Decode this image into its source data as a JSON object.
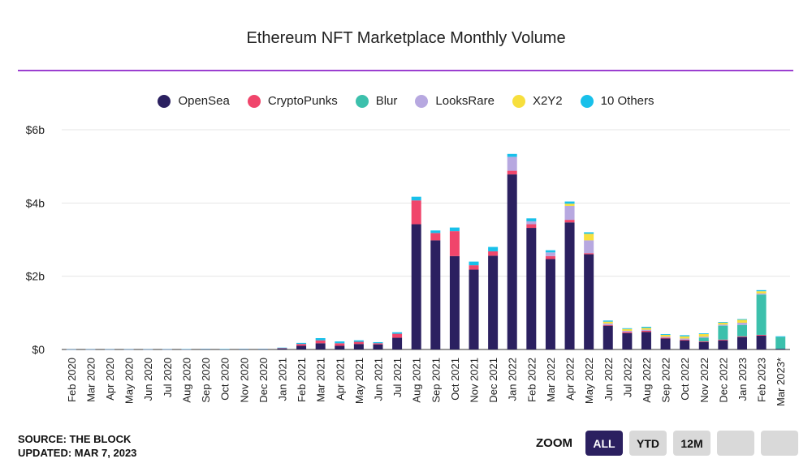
{
  "title": "Ethereum NFT Marketplace Monthly Volume",
  "colors": {
    "title_rule": "#9b3fd0"
  },
  "legend": [
    {
      "label": "OpenSea",
      "color": "#2b2060"
    },
    {
      "label": "CryptoPunks",
      "color": "#f0456b"
    },
    {
      "label": "Blur",
      "color": "#3cc0ac"
    },
    {
      "label": "LooksRare",
      "color": "#b7a8e0"
    },
    {
      "label": "X2Y2",
      "color": "#f7df3d"
    },
    {
      "label": "10 Others",
      "color": "#18c0ea"
    }
  ],
  "source": {
    "line1": "SOURCE: THE BLOCK",
    "line2": "UPDATED: MAR 7, 2023"
  },
  "zoom": {
    "label": "ZOOM",
    "buttons": [
      {
        "label": "ALL",
        "active": true
      },
      {
        "label": "YTD",
        "active": false
      },
      {
        "label": "12M",
        "active": false
      },
      {
        "label": "",
        "active": false
      },
      {
        "label": "",
        "active": false
      }
    ]
  },
  "chart_data": {
    "type": "bar",
    "stacked": true,
    "title": "Ethereum NFT Marketplace Monthly Volume",
    "xlabel": "",
    "ylabel": "",
    "ylim": [
      0,
      6
    ],
    "yticks": [
      0,
      2,
      4,
      6
    ],
    "ytick_labels": [
      "$0",
      "$2b",
      "$4b",
      "$6b"
    ],
    "grid": true,
    "legend_position": "top",
    "categories": [
      "Feb 2020",
      "Mar 2020",
      "Apr 2020",
      "May 2020",
      "Jun 2020",
      "Jul 2020",
      "Aug 2020",
      "Sep 2020",
      "Oct 2020",
      "Nov 2020",
      "Dec 2020",
      "Jan 2021",
      "Feb 2021",
      "Mar 2021",
      "Apr 2021",
      "May 2021",
      "Jun 2021",
      "Jul 2021",
      "Aug 2021",
      "Sep 2021",
      "Oct 2021",
      "Nov 2021",
      "Dec 2021",
      "Jan 2022",
      "Feb 2022",
      "Mar 2022",
      "Apr 2022",
      "May 2022",
      "Jun 2022",
      "Jul 2022",
      "Aug 2022",
      "Sep 2022",
      "Oct 2022",
      "Nov 2022",
      "Dec 2022",
      "Jan 2023",
      "Feb 2023",
      "Mar 2023*"
    ],
    "series": [
      {
        "name": "OpenSea",
        "color": "#2b2060",
        "values": [
          0.002,
          0.003,
          0.003,
          0.003,
          0.003,
          0.004,
          0.006,
          0.01,
          0.008,
          0.01,
          0.01,
          0.03,
          0.1,
          0.17,
          0.1,
          0.15,
          0.14,
          0.32,
          3.42,
          2.98,
          2.55,
          2.18,
          2.56,
          4.78,
          3.32,
          2.47,
          3.47,
          2.6,
          0.65,
          0.45,
          0.48,
          0.3,
          0.25,
          0.2,
          0.25,
          0.34,
          0.38,
          0.02
        ]
      },
      {
        "name": "CryptoPunks",
        "color": "#f0456b",
        "values": [
          0.002,
          0.002,
          0.002,
          0.002,
          0.002,
          0.002,
          0.002,
          0.004,
          0.003,
          0.004,
          0.004,
          0.01,
          0.05,
          0.08,
          0.07,
          0.06,
          0.03,
          0.11,
          0.65,
          0.2,
          0.68,
          0.12,
          0.12,
          0.1,
          0.1,
          0.08,
          0.07,
          0.03,
          0.02,
          0.03,
          0.03,
          0.02,
          0.02,
          0.02,
          0.02,
          0.02,
          0.02,
          0.0
        ]
      },
      {
        "name": "Blur",
        "color": "#3cc0ac",
        "values": [
          0,
          0,
          0,
          0,
          0,
          0,
          0,
          0,
          0,
          0,
          0,
          0,
          0,
          0,
          0,
          0,
          0,
          0,
          0,
          0,
          0,
          0,
          0,
          0,
          0,
          0,
          0,
          0,
          0,
          0,
          0,
          0,
          0,
          0.1,
          0.38,
          0.31,
          1.1,
          0.32
        ]
      },
      {
        "name": "LooksRare",
        "color": "#b7a8e0",
        "values": [
          0,
          0,
          0,
          0,
          0,
          0,
          0,
          0,
          0,
          0,
          0,
          0,
          0,
          0,
          0,
          0,
          0,
          0,
          0,
          0,
          0,
          0,
          0,
          0.38,
          0.08,
          0.1,
          0.38,
          0.35,
          0.04,
          0.03,
          0.03,
          0.03,
          0.03,
          0.03,
          0.03,
          0.06,
          0.03,
          0.0
        ]
      },
      {
        "name": "X2Y2",
        "color": "#f7df3d",
        "values": [
          0,
          0,
          0,
          0,
          0,
          0,
          0,
          0,
          0,
          0,
          0,
          0,
          0,
          0,
          0,
          0,
          0,
          0,
          0,
          0,
          0,
          0,
          0,
          0,
          0,
          0,
          0.06,
          0.18,
          0.05,
          0.05,
          0.05,
          0.05,
          0.06,
          0.07,
          0.05,
          0.08,
          0.06,
          0.0
        ]
      },
      {
        "name": "10 Others",
        "color": "#18c0ea",
        "values": [
          0.001,
          0.001,
          0.001,
          0.001,
          0.001,
          0.001,
          0.001,
          0.002,
          0.002,
          0.002,
          0.003,
          0.01,
          0.03,
          0.06,
          0.05,
          0.04,
          0.03,
          0.04,
          0.1,
          0.07,
          0.1,
          0.1,
          0.12,
          0.08,
          0.08,
          0.06,
          0.06,
          0.04,
          0.03,
          0.02,
          0.03,
          0.02,
          0.03,
          0.02,
          0.02,
          0.02,
          0.03,
          0.02
        ]
      }
    ]
  }
}
